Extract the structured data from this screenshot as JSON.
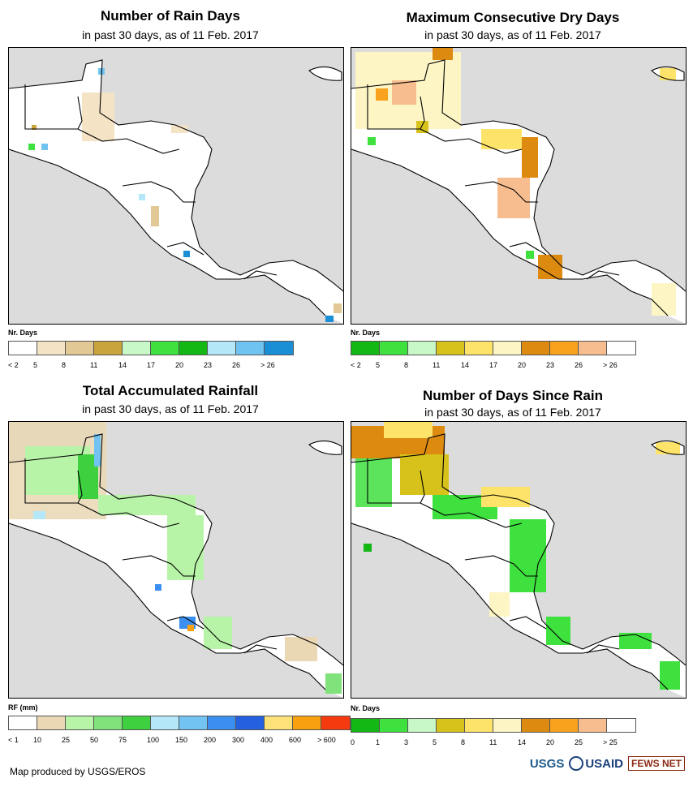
{
  "panels": [
    {
      "title": "Number of Rain Days",
      "subtitle": "in past 30 days, as of 11 Feb. 2017",
      "legend_title": "Nr. Days",
      "legend_colors": [
        "#ffffff",
        "#f5e3c6",
        "#e2c895",
        "#c9a33b",
        "#c8f7c8",
        "#3fe13f",
        "#14b814",
        "#b4e8f8",
        "#6fc3f0",
        "#1b8fd6"
      ],
      "legend_labels": [
        "< 2",
        "5",
        "8",
        "11",
        "14",
        "17",
        "20",
        "23",
        "26",
        "> 26"
      ]
    },
    {
      "title": "Maximum Consecutive Dry Days",
      "subtitle": "in past 30 days, as of 11 Feb. 2017",
      "legend_title": "Nr. Days",
      "legend_colors": [
        "#14b814",
        "#3fe13f",
        "#c8f7c8",
        "#d6c21a",
        "#fde36a",
        "#fdf6c4",
        "#dc8a10",
        "#f8a21e",
        "#f7bd8f",
        "#ffffff"
      ],
      "legend_labels": [
        "< 2",
        "5",
        "8",
        "11",
        "14",
        "17",
        "20",
        "23",
        "26",
        "> 26"
      ]
    },
    {
      "title": "Total Accumulated Rainfall",
      "subtitle": "in past 30 days, as of 11 Feb. 2017",
      "legend_title": "RF (mm)",
      "legend_colors": [
        "#ffffff",
        "#ead7b4",
        "#b8f4a8",
        "#80e27a",
        "#3ed03e",
        "#b4e8f8",
        "#72c2f2",
        "#3b8ff0",
        "#2460e0",
        "#fde27a",
        "#f8a010",
        "#f53a10"
      ],
      "legend_labels": [
        "< 1",
        "10",
        "25",
        "50",
        "75",
        "100",
        "150",
        "200",
        "300",
        "400",
        "600",
        "> 600"
      ]
    },
    {
      "title": "Number of Days Since Rain",
      "subtitle": "in past 30 days, as of 11 Feb. 2017",
      "legend_title": "Nr. Days",
      "legend_colors": [
        "#14b814",
        "#3fe13f",
        "#c8f7c8",
        "#d6c21a",
        "#fde36a",
        "#fdf6c4",
        "#dc8a10",
        "#f8a21e",
        "#f7bd8f",
        "#ffffff"
      ],
      "legend_labels": [
        "0",
        "1",
        "3",
        "5",
        "8",
        "11",
        "14",
        "20",
        "25",
        "> 25"
      ]
    }
  ],
  "footer": "Map produced by USGS/EROS",
  "logos": {
    "usgs": "USGS",
    "usaid": "USAID",
    "fews": "FEWS NET"
  }
}
